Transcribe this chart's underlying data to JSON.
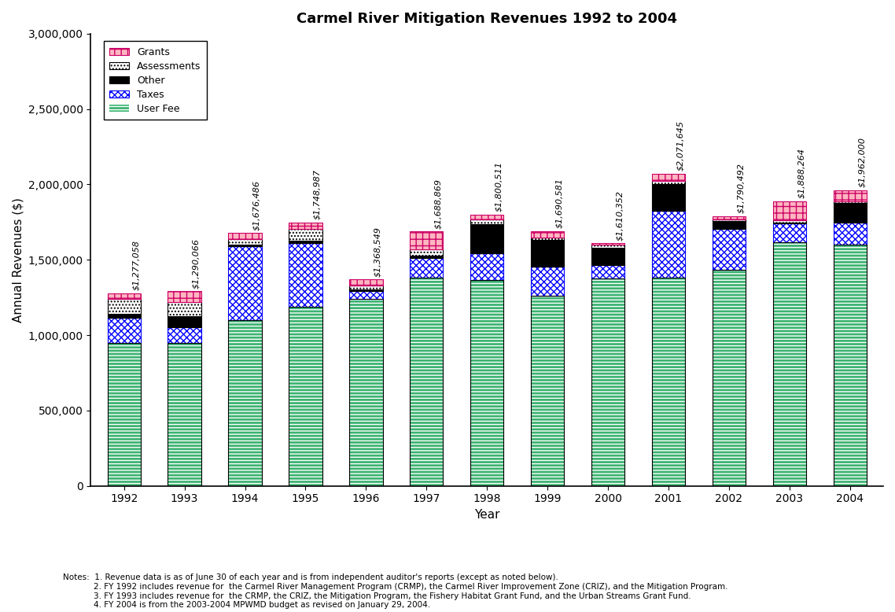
{
  "title": "Carmel River Mitigation Revenues 1992 to 2004",
  "xlabel": "Year",
  "ylabel": "Annual Revenues ($)",
  "years": [
    1992,
    1993,
    1994,
    1995,
    1996,
    1997,
    1998,
    1999,
    2000,
    2001,
    2002,
    2003,
    2004
  ],
  "totals": [
    1277058,
    1290066,
    1676486,
    1748987,
    1368549,
    1688869,
    1800511,
    1690581,
    1610352,
    2071645,
    1790492,
    1888264,
    1962000
  ],
  "totals_labels": [
    "$1,277,058",
    "$1,290,066",
    "$1,676,486",
    "$1,748,987",
    "$1,368,549",
    "$1,688,869",
    "$1,800,511",
    "$1,690,581",
    "$1,610,352",
    "$2,071,645",
    "$1,790,492",
    "$1,888,264",
    "$1,962,000"
  ],
  "user_fee": [
    950000,
    950000,
    1100000,
    1190000,
    1240000,
    1380000,
    1365000,
    1260000,
    1375000,
    1380000,
    1435000,
    1615000,
    1600000
  ],
  "taxes": [
    165000,
    100000,
    490000,
    420000,
    55000,
    130000,
    180000,
    195000,
    90000,
    445000,
    270000,
    125000,
    145000
  ],
  "other": [
    25000,
    75000,
    8000,
    15000,
    8000,
    15000,
    190000,
    175000,
    115000,
    175000,
    50000,
    8000,
    130000
  ],
  "assessments": [
    100000,
    95000,
    40000,
    80000,
    25000,
    45000,
    30000,
    15000,
    20000,
    25000,
    10000,
    15000,
    15000
  ],
  "grants": [
    37058,
    70066,
    38486,
    43987,
    40549,
    118869,
    35511,
    45581,
    10352,
    46645,
    25492,
    125264,
    72000
  ],
  "uf_color": "#00C060",
  "tx_color": "#FFFFFF",
  "ot_color": "#000000",
  "as_color": "#FFFFFF",
  "gr_color": "#FFFFFF",
  "ylim": [
    0,
    3000000
  ],
  "yticks": [
    0,
    500000,
    1000000,
    1500000,
    2000000,
    2500000,
    3000000
  ],
  "bar_width": 0.55,
  "notes_line1": "Notes:  1. Revenue data is as of June 30 of each year and is from independent auditor's reports (except as noted below).",
  "notes_line2": "            2. FY 1992 includes revenue for  the Carmel River Management Program (CRMP), the Carmel River Improvement Zone (CRIZ), and the Mitigation Program.",
  "notes_line3": "            3. FY 1993 includes revenue for  the CRMP, the CRIZ, the Mitigation Program, the Fishery Habitat Grant Fund, and the Urban Streams Grant Fund.",
  "notes_line4": "            4. FY 2004 is from the 2003-2004 MPWMD budget as revised on January 29, 2004."
}
